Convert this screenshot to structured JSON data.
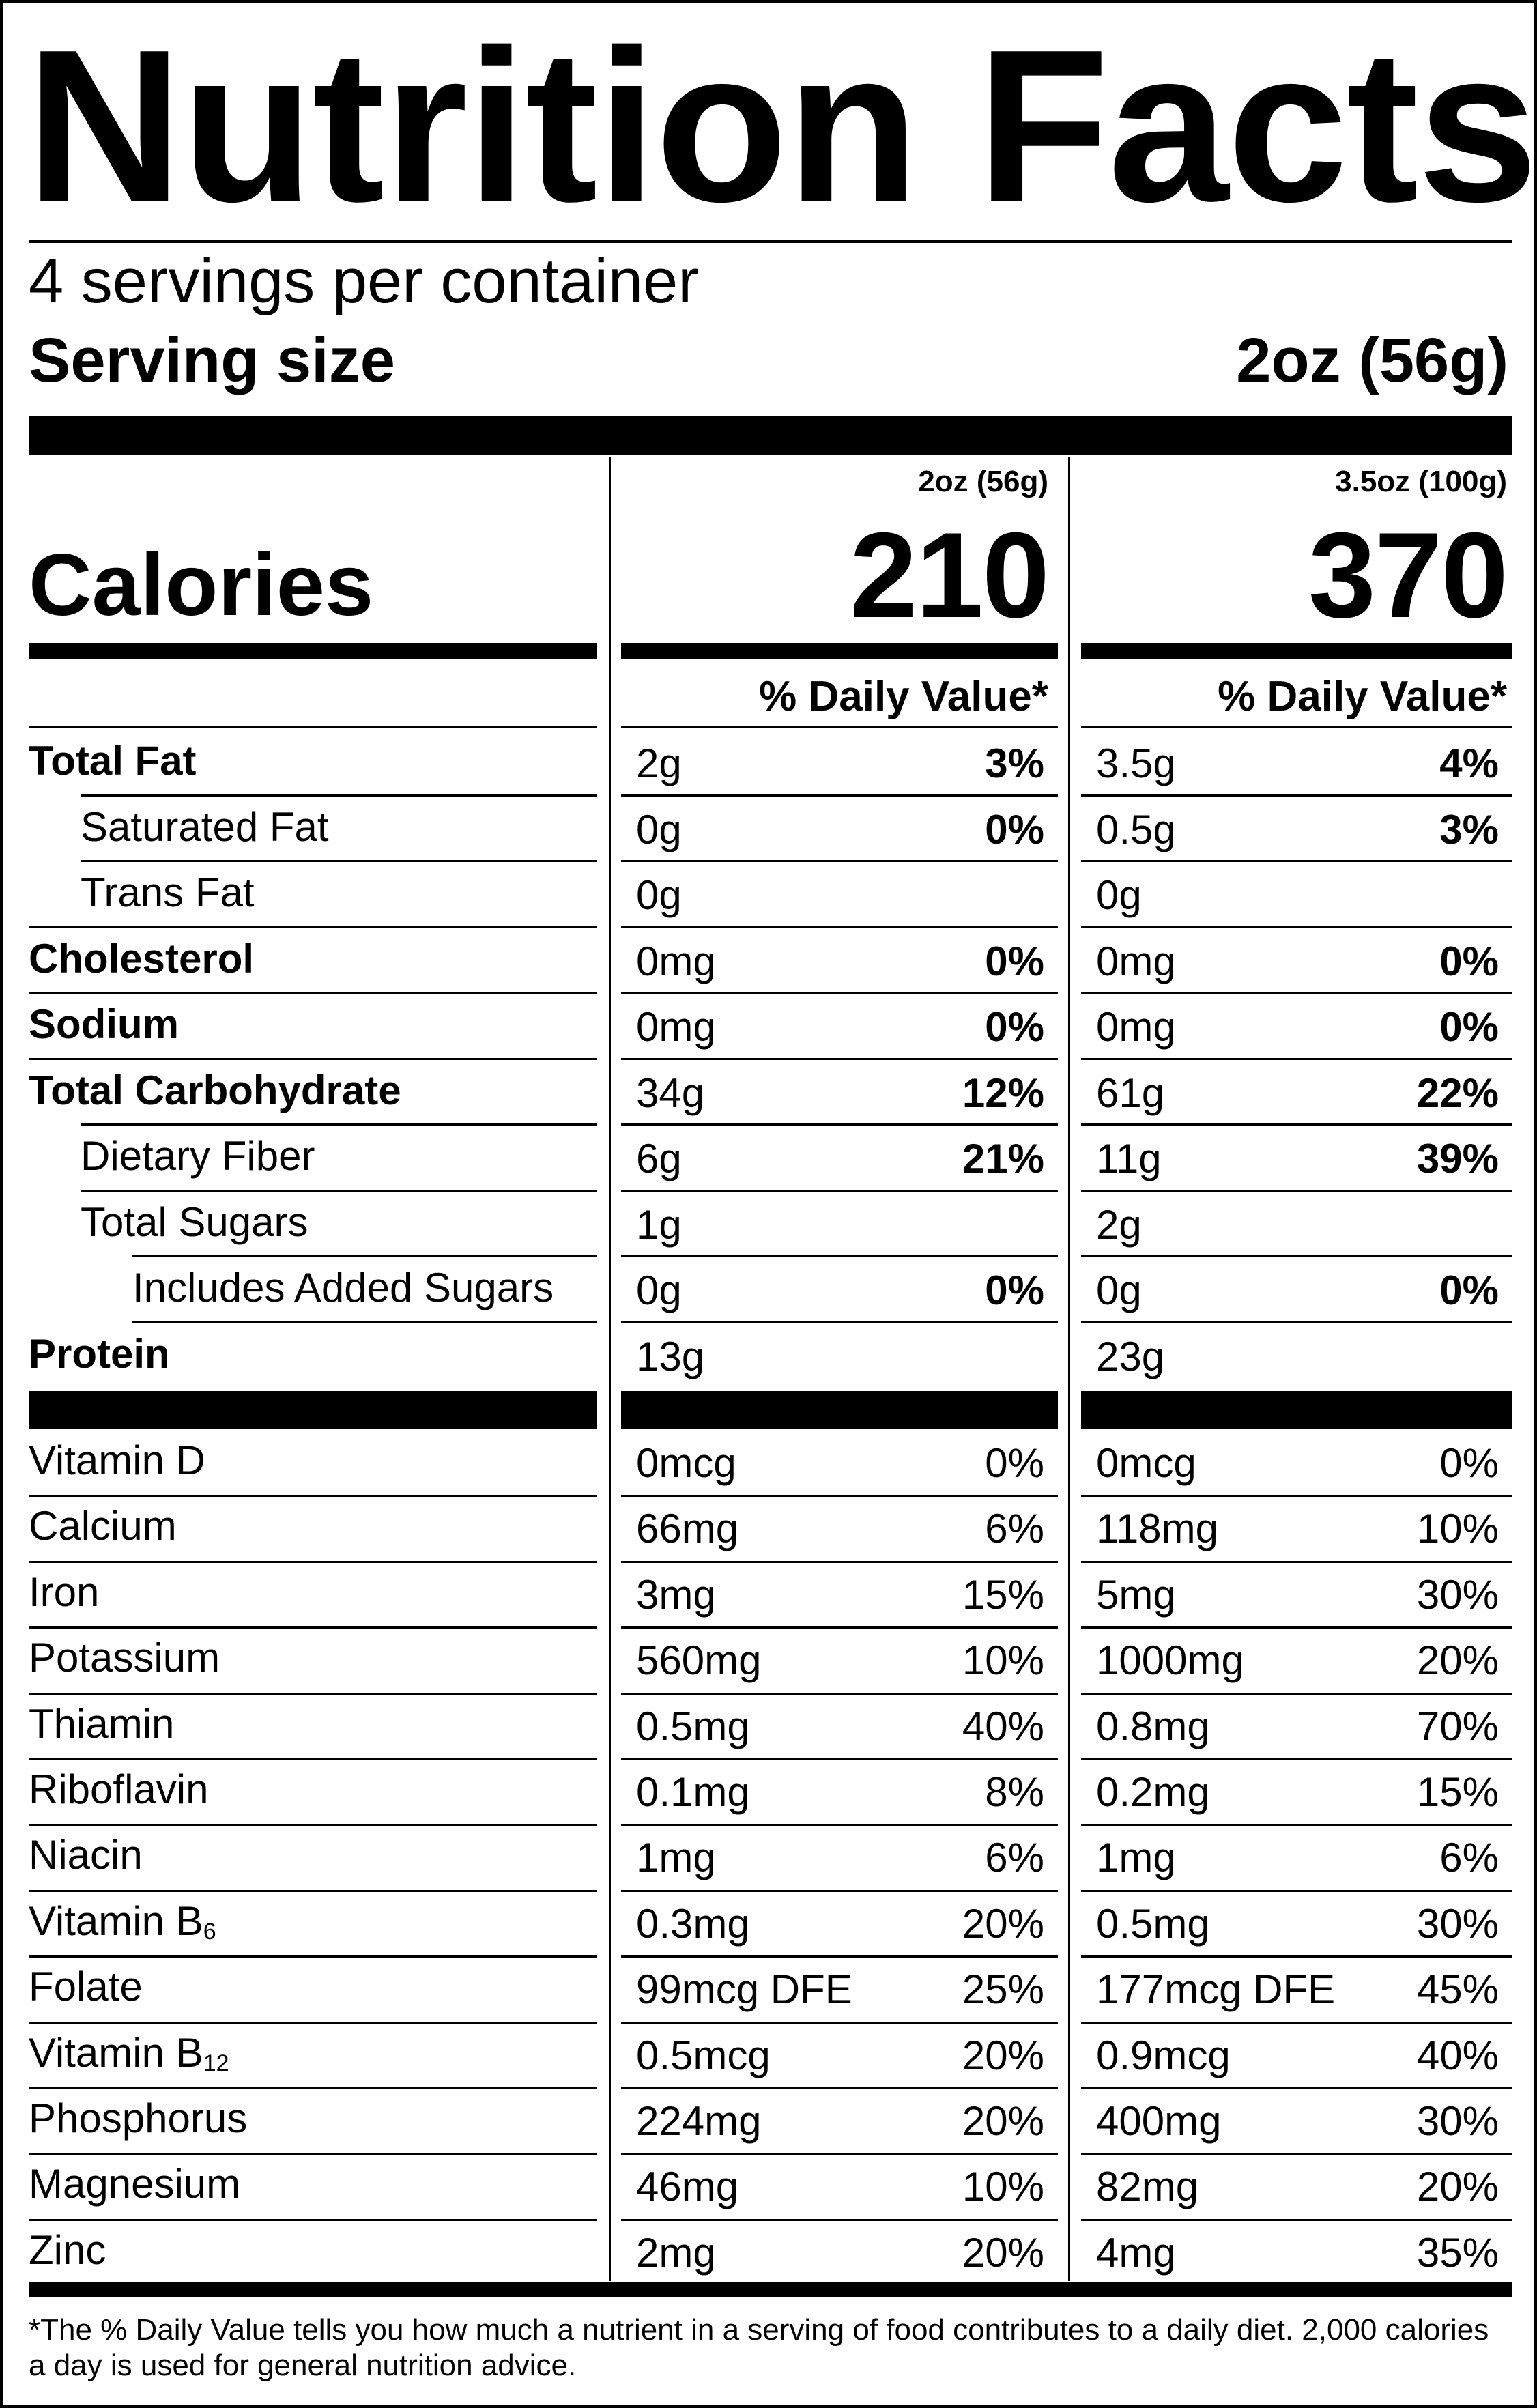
{
  "title": "Nutrition Facts",
  "servings_per_container": "4 servings per container",
  "serving_size": {
    "label": "Serving size",
    "value": "2oz (56g)"
  },
  "calories": {
    "label": "Calories",
    "columns": [
      {
        "header": "2oz (56g)",
        "value": "210"
      },
      {
        "header": "3.5oz (100g)",
        "value": "370"
      }
    ]
  },
  "daily_value_header": "% Daily Value*",
  "nutrients": [
    {
      "name": "Total Fat",
      "bold": true,
      "indent": 0,
      "amounts": [
        "2g",
        "3.5g"
      ],
      "dv": [
        "3%",
        "4%"
      ]
    },
    {
      "name": "Saturated Fat",
      "bold": false,
      "indent": 1,
      "amounts": [
        "0g",
        "0.5g"
      ],
      "dv": [
        "0%",
        "3%"
      ]
    },
    {
      "name": "Trans Fat",
      "bold": false,
      "indent": 1,
      "amounts": [
        "0g",
        "0g"
      ],
      "dv": [
        "",
        ""
      ]
    },
    {
      "name": "Cholesterol",
      "bold": true,
      "indent": 0,
      "amounts": [
        "0mg",
        "0mg"
      ],
      "dv": [
        "0%",
        "0%"
      ]
    },
    {
      "name": "Sodium",
      "bold": true,
      "indent": 0,
      "amounts": [
        "0mg",
        "0mg"
      ],
      "dv": [
        "0%",
        "0%"
      ]
    },
    {
      "name": "Total Carbohydrate",
      "bold": true,
      "indent": 0,
      "amounts": [
        "34g",
        "61g"
      ],
      "dv": [
        "12%",
        "22%"
      ]
    },
    {
      "name": "Dietary Fiber",
      "bold": false,
      "indent": 1,
      "amounts": [
        "6g",
        "11g"
      ],
      "dv": [
        "21%",
        "39%"
      ]
    },
    {
      "name": "Total Sugars",
      "bold": false,
      "indent": 1,
      "amounts": [
        "1g",
        "2g"
      ],
      "dv": [
        "",
        ""
      ]
    },
    {
      "name": "Includes Added Sugars",
      "bold": false,
      "indent": 2,
      "amounts": [
        "0g",
        "0g"
      ],
      "dv": [
        "0%",
        "0%"
      ]
    },
    {
      "name": "Protein",
      "bold": true,
      "indent": 0,
      "amounts": [
        "13g",
        "23g"
      ],
      "dv": [
        "",
        ""
      ]
    }
  ],
  "vitamins": [
    {
      "name": "Vitamin D",
      "amounts": [
        "0mcg",
        "0mcg"
      ],
      "dv": [
        "0%",
        "0%"
      ]
    },
    {
      "name": "Calcium",
      "amounts": [
        "66mg",
        "118mg"
      ],
      "dv": [
        "6%",
        "10%"
      ]
    },
    {
      "name": "Iron",
      "amounts": [
        "3mg",
        "5mg"
      ],
      "dv": [
        "15%",
        "30%"
      ]
    },
    {
      "name": "Potassium",
      "amounts": [
        "560mg",
        "1000mg"
      ],
      "dv": [
        "10%",
        "20%"
      ]
    },
    {
      "name": "Thiamin",
      "amounts": [
        "0.5mg",
        "0.8mg"
      ],
      "dv": [
        "40%",
        "70%"
      ]
    },
    {
      "name": "Riboflavin",
      "amounts": [
        "0.1mg",
        "0.2mg"
      ],
      "dv": [
        "8%",
        "15%"
      ]
    },
    {
      "name": "Niacin",
      "amounts": [
        "1mg",
        "1mg"
      ],
      "dv": [
        "6%",
        "6%"
      ]
    },
    {
      "name": "Vitamin B",
      "subscript": "6",
      "amounts": [
        "0.3mg",
        "0.5mg"
      ],
      "dv": [
        "20%",
        "30%"
      ]
    },
    {
      "name": "Folate",
      "amounts": [
        "99mcg DFE",
        "177mcg DFE"
      ],
      "dv": [
        "25%",
        "45%"
      ]
    },
    {
      "name": "Vitamin B",
      "subscript": "12",
      "amounts": [
        "0.5mcg",
        "0.9mcg"
      ],
      "dv": [
        "20%",
        "40%"
      ]
    },
    {
      "name": "Phosphorus",
      "amounts": [
        "224mg",
        "400mg"
      ],
      "dv": [
        "20%",
        "30%"
      ]
    },
    {
      "name": "Magnesium",
      "amounts": [
        "46mg",
        "82mg"
      ],
      "dv": [
        "10%",
        "20%"
      ]
    },
    {
      "name": "Zinc",
      "amounts": [
        "2mg",
        "4mg"
      ],
      "dv": [
        "20%",
        "35%"
      ]
    }
  ],
  "footnote": "*The % Daily Value tells you how much a nutrient in a serving of food contributes to a daily diet. 2,000 calories a day is used for general nutrition advice."
}
